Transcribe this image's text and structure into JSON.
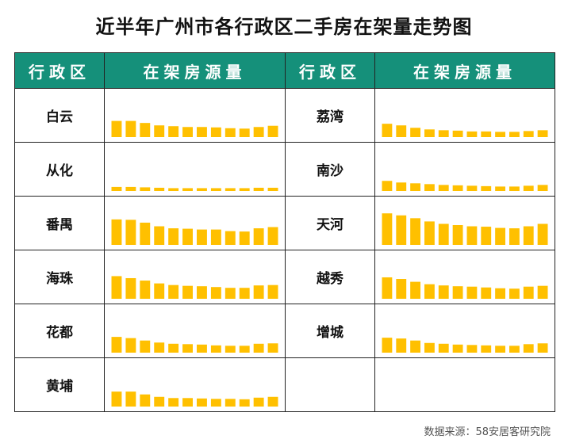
{
  "title": "近半年广州市各行政区二手房在架量走势图",
  "headers": {
    "district_left": "行政区",
    "chart_left": "在架房源量",
    "district_right": "行政区",
    "chart_right": "在架房源量"
  },
  "source": "数据来源：58安居客研究院",
  "colors": {
    "bar": "#FFC000",
    "header_bg": "#15907A"
  },
  "chart_data": {
    "type": "bar",
    "bars_per_district": 12,
    "ylim": [
      0,
      100
    ],
    "panels": [
      {
        "name": "白云",
        "column": "left",
        "values": [
          40,
          40,
          35,
          29,
          27,
          25,
          25,
          24,
          22,
          21,
          25,
          28
        ]
      },
      {
        "name": "荔湾",
        "column": "right",
        "values": [
          33,
          29,
          23,
          19,
          17,
          16,
          14,
          14,
          13,
          13,
          15,
          17
        ]
      },
      {
        "name": "从化",
        "column": "left",
        "values": [
          10,
          10,
          9,
          8,
          7,
          7,
          7,
          7,
          7,
          7,
          8,
          8
        ]
      },
      {
        "name": "南沙",
        "column": "right",
        "values": [
          25,
          21,
          19,
          17,
          15,
          14,
          13,
          12,
          11,
          11,
          13,
          15
        ]
      },
      {
        "name": "番禺",
        "column": "left",
        "values": [
          63,
          62,
          55,
          46,
          41,
          40,
          38,
          38,
          34,
          33,
          41,
          44
        ]
      },
      {
        "name": "天河",
        "column": "right",
        "values": [
          78,
          73,
          66,
          58,
          52,
          49,
          46,
          45,
          42,
          41,
          46,
          52
        ]
      },
      {
        "name": "越秀",
        "column": "right",
        "values": [
          53,
          49,
          42,
          36,
          33,
          31,
          30,
          28,
          26,
          25,
          30,
          32
        ]
      },
      {
        "name": "海珠",
        "column": "left",
        "values": [
          56,
          51,
          45,
          38,
          34,
          32,
          31,
          29,
          27,
          27,
          33,
          34
        ]
      },
      {
        "name": "花都",
        "column": "left",
        "values": [
          39,
          36,
          30,
          25,
          22,
          21,
          20,
          18,
          17,
          17,
          22,
          23
        ]
      },
      {
        "name": "增城",
        "column": "right",
        "values": [
          37,
          35,
          30,
          24,
          22,
          20,
          19,
          18,
          17,
          17,
          21,
          23
        ]
      },
      {
        "name": "黄埔",
        "column": "left",
        "values": [
          37,
          37,
          30,
          24,
          21,
          21,
          20,
          19,
          19,
          18,
          22,
          24
        ]
      }
    ]
  }
}
